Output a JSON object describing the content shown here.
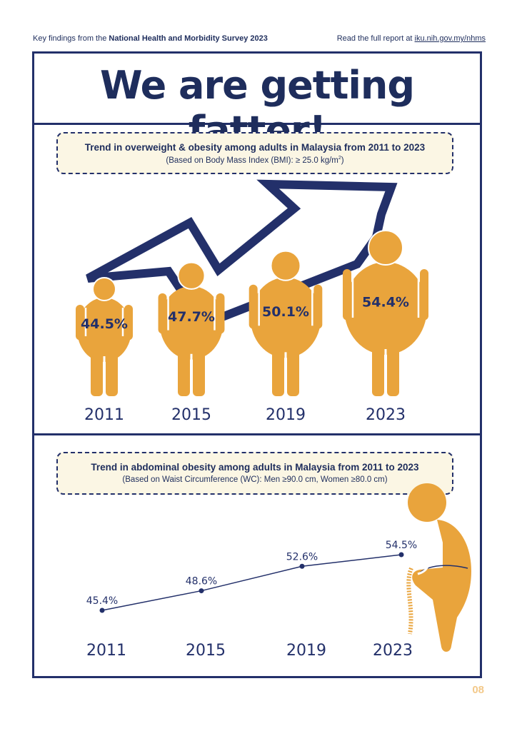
{
  "header": {
    "left_prefix": "Key findings from the ",
    "left_bold": "National Health and Morbidity Survey 2023",
    "right_prefix": "Read the full report at ",
    "right_link": "iku.nih.gov.my/nhms"
  },
  "title": "We are getting fatter!",
  "section1": {
    "heading": "Trend in overweight & obesity among adults in Malaysia from 2011 to 2023",
    "subheading": "(Based on Body Mass Index (BMI): ≥ 25.0 kg/m",
    "subheading_sup": "2",
    "subheading_end": ")"
  },
  "section2": {
    "heading": "Trend in abdominal obesity among adults in Malaysia from 2011 to 2023",
    "subheading": "(Based on Waist Circumference (WC): Men ≥90.0 cm, Women ≥80.0 cm)"
  },
  "page_number": "08",
  "colors": {
    "navy": "#23306a",
    "mustard": "#e9a43c",
    "cream": "#fbf6e4"
  },
  "chart_data": [
    {
      "type": "bar",
      "categories": [
        "2011",
        "2015",
        "2019",
        "2023"
      ],
      "values": [
        44.5,
        47.7,
        50.1,
        54.4
      ],
      "labels": [
        "44.5%",
        "47.7%",
        "50.1%",
        "54.4%"
      ],
      "unit": "%"
    },
    {
      "type": "line",
      "categories": [
        "2011",
        "2015",
        "2019",
        "2023"
      ],
      "values": [
        45.4,
        48.6,
        52.6,
        54.5
      ],
      "labels": [
        "45.4%",
        "48.6%",
        "52.6%",
        "54.5%"
      ],
      "unit": "%"
    }
  ]
}
